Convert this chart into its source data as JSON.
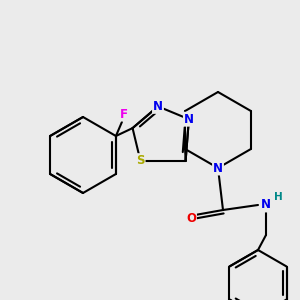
{
  "background_color": "#ebebeb",
  "bond_color": "#000000",
  "bond_width": 1.5,
  "atom_colors": {
    "F": "#ee00ee",
    "N": "#0000ee",
    "S": "#aaaa00",
    "O": "#ee0000",
    "H": "#008888",
    "C": "#000000"
  },
  "font_size": 8.5,
  "fig_width": 3.0,
  "fig_height": 3.0,
  "dpi": 100
}
